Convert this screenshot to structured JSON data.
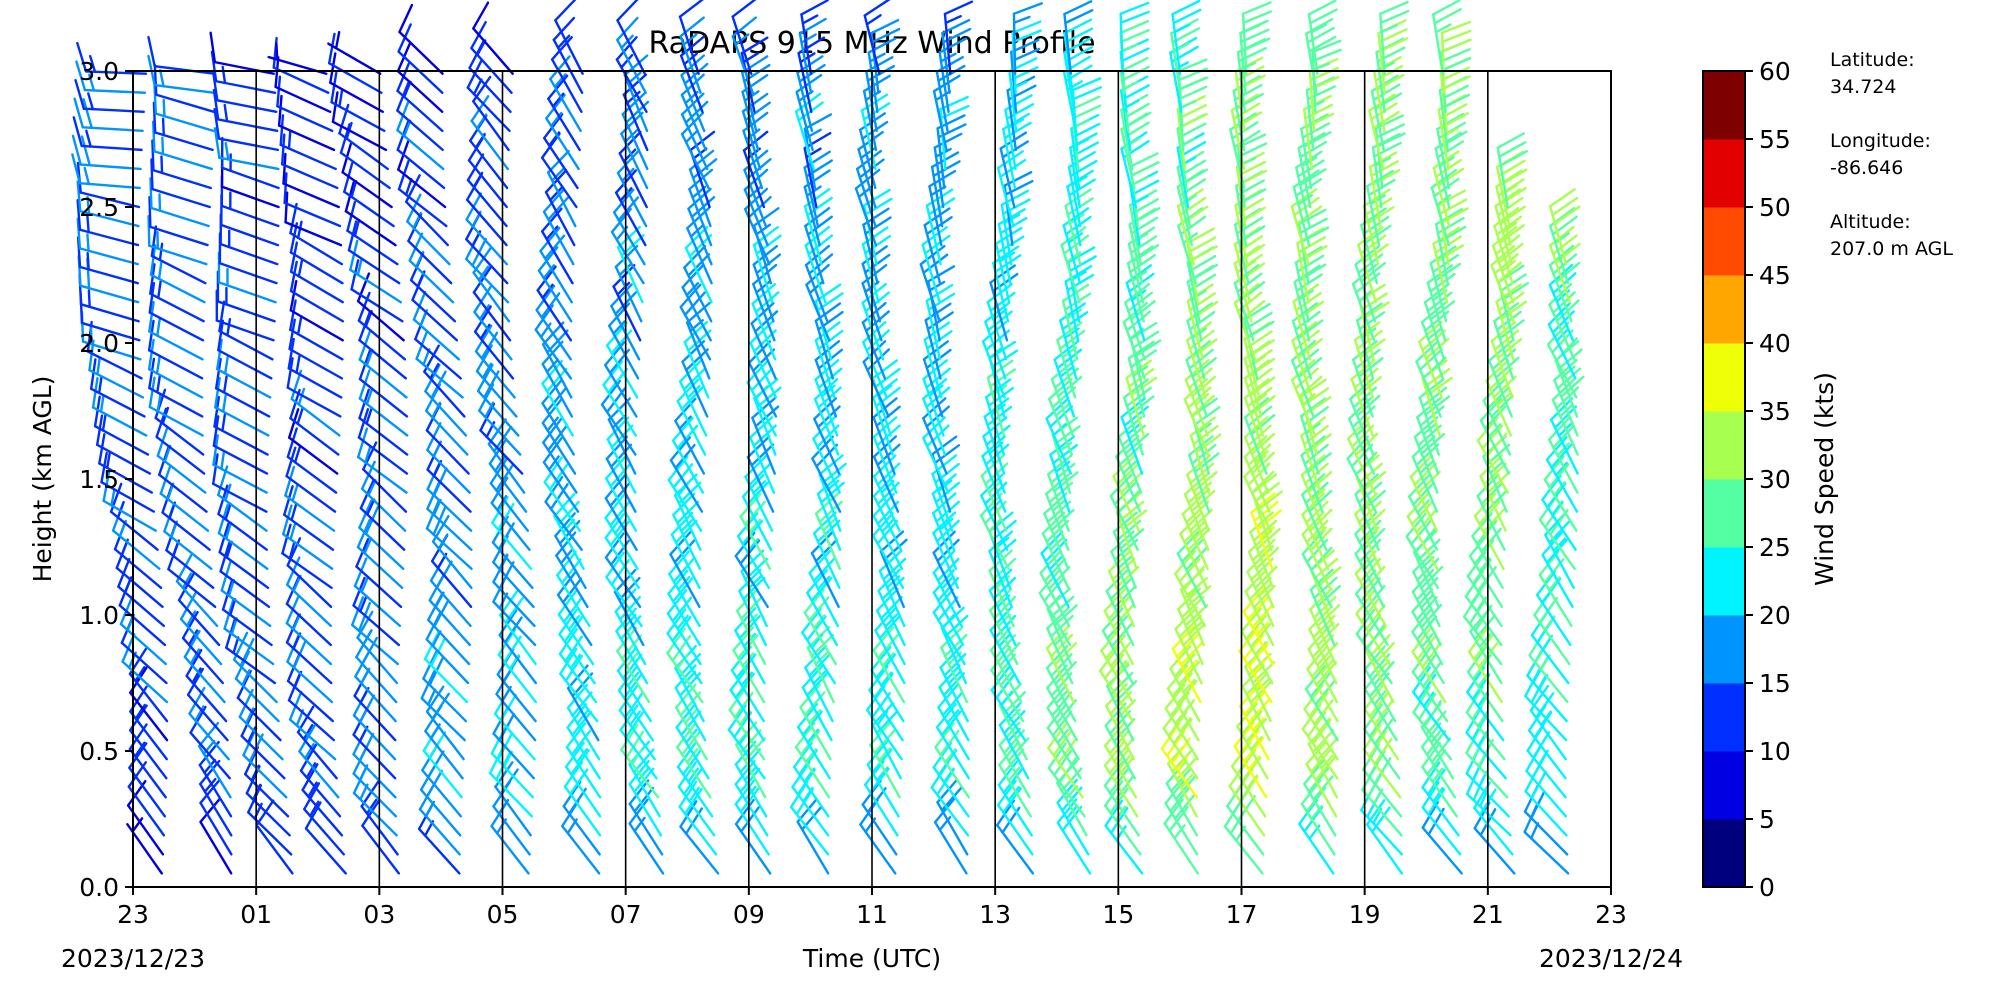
{
  "chart_data": {
    "type": "wind_barb",
    "title": "RaDAPS 915 MHz Wind Profile",
    "xlabel": "Time (UTC)",
    "ylabel": "Height (km AGL)",
    "x_tick_labels": [
      "23",
      "01",
      "03",
      "05",
      "07",
      "09",
      "11",
      "13",
      "15",
      "17",
      "19",
      "21",
      "23"
    ],
    "x_ticks_hours": [
      0,
      2,
      4,
      6,
      8,
      10,
      12,
      14,
      16,
      18,
      20,
      22,
      24
    ],
    "xlim_hours": [
      0,
      24
    ],
    "date_start": "2023/12/23",
    "date_end": "2023/12/24",
    "ylim": [
      0.0,
      3.0
    ],
    "y_ticks": [
      0.0,
      0.5,
      1.0,
      1.5,
      2.0,
      2.5,
      3.0
    ],
    "y_tick_labels": [
      "0.0",
      "0.5",
      "1.0",
      "1.5",
      "2.0",
      "2.5",
      "3.0"
    ],
    "vertical_lines_hours": [
      2,
      4,
      6,
      8,
      10,
      12,
      14,
      16,
      18,
      20,
      22
    ],
    "colorbar": {
      "label": "Wind Speed (kts)",
      "range": [
        0,
        60
      ],
      "ticks": [
        0,
        5,
        10,
        15,
        20,
        25,
        30,
        35,
        40,
        45,
        50,
        55,
        60
      ],
      "colors": [
        "#00007f",
        "#0000e3",
        "#0030ff",
        "#0094ff",
        "#00f4ff",
        "#54ffa3",
        "#a7ff4f",
        "#efff07",
        "#ffa700",
        "#ff4a00",
        "#e30000",
        "#7f0000"
      ]
    },
    "station": {
      "latitude_label": "Latitude:",
      "latitude": "34.724",
      "longitude_label": "Longitude:",
      "longitude": "-86.646",
      "altitude_label": "Altitude:",
      "altitude": "207.0 m AGL"
    },
    "profiles": [
      {
        "hour": 0.0,
        "dir_low": 330,
        "dir_high": 270,
        "speed_low": 12,
        "speed_high": 16,
        "top_km": 3.0
      },
      {
        "hour": 1.0,
        "dir_low": 330,
        "dir_high": 280,
        "speed_low": 14,
        "speed_high": 14,
        "top_km": 3.0
      },
      {
        "hour": 2.0,
        "dir_low": 320,
        "dir_high": 280,
        "speed_low": 16,
        "speed_high": 12,
        "top_km": 3.0
      },
      {
        "hour": 3.0,
        "dir_low": 320,
        "dir_high": 290,
        "speed_low": 16,
        "speed_high": 10,
        "top_km": 3.0
      },
      {
        "hour": 4.0,
        "dir_low": 320,
        "dir_high": 300,
        "speed_low": 18,
        "speed_high": 10,
        "top_km": 3.0
      },
      {
        "hour": 5.0,
        "dir_low": 320,
        "dir_high": 310,
        "speed_low": 20,
        "speed_high": 11,
        "top_km": 3.0
      },
      {
        "hour": 6.0,
        "dir_low": 320,
        "dir_high": 320,
        "speed_low": 22,
        "speed_high": 12,
        "top_km": 3.0
      },
      {
        "hour": 7.0,
        "dir_low": 325,
        "dir_high": 330,
        "speed_low": 24,
        "speed_high": 13,
        "top_km": 3.0
      },
      {
        "hour": 8.0,
        "dir_low": 325,
        "dir_high": 335,
        "speed_low": 25,
        "speed_high": 14,
        "top_km": 3.0
      },
      {
        "hour": 9.0,
        "dir_low": 325,
        "dir_high": 340,
        "speed_low": 26,
        "speed_high": 15,
        "top_km": 3.0
      },
      {
        "hour": 10.0,
        "dir_low": 325,
        "dir_high": 345,
        "speed_low": 27,
        "speed_high": 15,
        "top_km": 3.0
      },
      {
        "hour": 11.0,
        "dir_low": 325,
        "dir_high": 350,
        "speed_low": 26,
        "speed_high": 16,
        "top_km": 3.0
      },
      {
        "hour": 12.0,
        "dir_low": 325,
        "dir_high": 350,
        "speed_low": 25,
        "speed_high": 17,
        "top_km": 3.0
      },
      {
        "hour": 13.0,
        "dir_low": 325,
        "dir_high": 355,
        "speed_low": 25,
        "speed_high": 17,
        "top_km": 3.0
      },
      {
        "hour": 14.0,
        "dir_low": 325,
        "dir_high": 355,
        "speed_low": 27,
        "speed_high": 20,
        "top_km": 3.0
      },
      {
        "hour": 15.0,
        "dir_low": 325,
        "dir_high": 355,
        "speed_low": 30,
        "speed_high": 22,
        "top_km": 3.0
      },
      {
        "hour": 16.0,
        "dir_low": 325,
        "dir_high": 355,
        "speed_low": 32,
        "speed_high": 24,
        "top_km": 3.0
      },
      {
        "hour": 17.0,
        "dir_low": 325,
        "dir_high": 355,
        "speed_low": 35,
        "speed_high": 26,
        "top_km": 3.0
      },
      {
        "hour": 18.0,
        "dir_low": 325,
        "dir_high": 355,
        "speed_low": 36,
        "speed_high": 28,
        "top_km": 3.0
      },
      {
        "hour": 19.0,
        "dir_low": 325,
        "dir_high": 355,
        "speed_low": 33,
        "speed_high": 28,
        "top_km": 3.0
      },
      {
        "hour": 20.0,
        "dir_low": 320,
        "dir_high": 355,
        "speed_low": 30,
        "speed_high": 29,
        "top_km": 3.0
      },
      {
        "hour": 21.0,
        "dir_low": 320,
        "dir_high": 355,
        "speed_low": 27,
        "speed_high": 30,
        "top_km": 3.0
      },
      {
        "hour": 22.0,
        "dir_low": 315,
        "dir_high": 355,
        "speed_low": 25,
        "speed_high": 34,
        "top_km": 2.5
      },
      {
        "hour": 23.0,
        "dir_low": 315,
        "dir_high": 350,
        "speed_low": 22,
        "speed_high": 30,
        "top_km": 2.3
      }
    ]
  }
}
